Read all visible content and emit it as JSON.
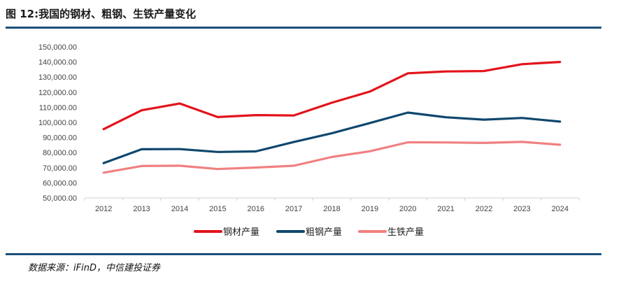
{
  "header": {
    "title": "图 12:我国的钢材、粗钢、生铁产量变化"
  },
  "footer": {
    "source": "数据来源：iFinD，中信建投证券"
  },
  "chart_data": {
    "type": "line",
    "title": "图 12:我国的钢材、粗钢、生铁产量变化",
    "xlabel": "",
    "ylabel": "",
    "categories": [
      "2012",
      "2013",
      "2014",
      "2015",
      "2016",
      "2017",
      "2018",
      "2019",
      "2020",
      "2021",
      "2022",
      "2023",
      "2024"
    ],
    "ylim": [
      50000,
      150000
    ],
    "yticks": [
      50000,
      60000,
      70000,
      80000,
      90000,
      100000,
      110000,
      120000,
      130000,
      140000,
      150000
    ],
    "ytick_labels": [
      "50,000.00",
      "60,000.00",
      "70,000.00",
      "80,000.00",
      "90,000.00",
      "100,000.00",
      "110,000.00",
      "120,000.00",
      "130,000.00",
      "140,000.00",
      "150,000.00"
    ],
    "grid": false,
    "legend": "bottom",
    "series": [
      {
        "name": "钢材产量",
        "color": "#e3131b",
        "values": [
          95500,
          108000,
          112500,
          103500,
          104800,
          104600,
          113000,
          120400,
          132500,
          133700,
          134000,
          138500,
          140000
        ]
      },
      {
        "name": "粗钢产量",
        "color": "#10476e",
        "values": [
          73000,
          82200,
          82300,
          80400,
          80800,
          87000,
          92800,
          99600,
          106500,
          103400,
          101800,
          102900,
          100500
        ]
      },
      {
        "name": "生铁产量",
        "color": "#f08080",
        "values": [
          66700,
          71100,
          71300,
          69100,
          70100,
          71300,
          77100,
          80900,
          86800,
          86700,
          86400,
          87100,
          85200
        ]
      }
    ]
  }
}
